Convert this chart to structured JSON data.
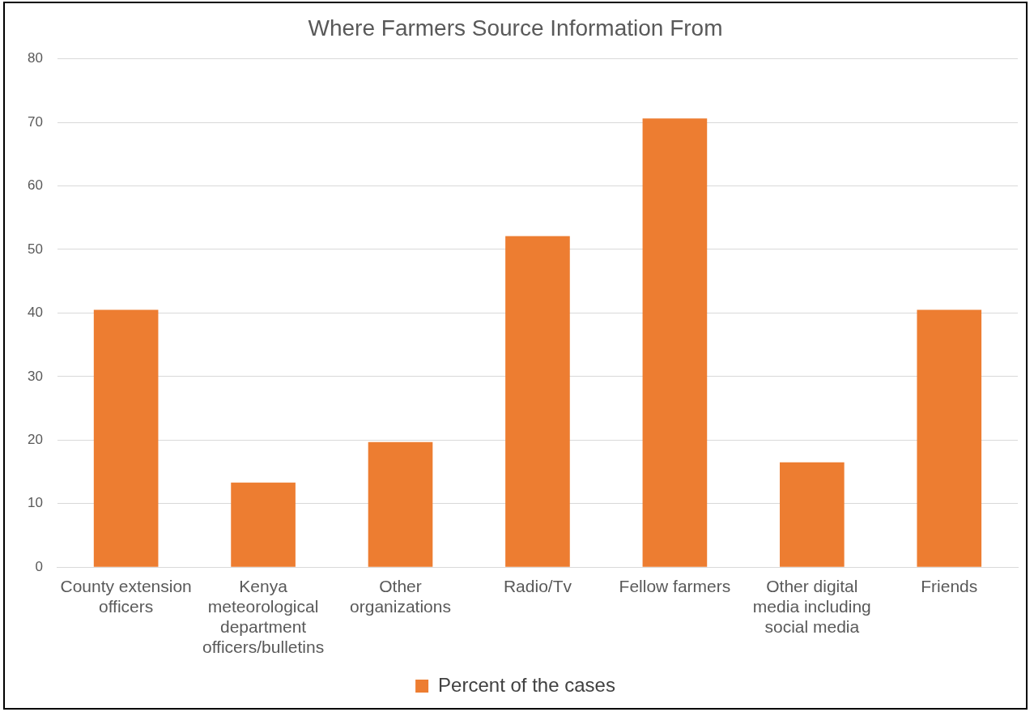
{
  "chart_data": {
    "type": "bar",
    "title": "Where Farmers Source Information From",
    "categories": [
      "County extension officers",
      "Kenya meteorological department officers/bulletins",
      "Other organizations",
      "Radio/Tv",
      "Fellow farmers",
      "Other digital media including social media",
      "Friends"
    ],
    "series": [
      {
        "name": "Percent of the cases",
        "color": "#ed7d31",
        "values": [
          40.5,
          13.3,
          19.7,
          52.1,
          70.6,
          16.5,
          40.5
        ]
      }
    ],
    "ylim": [
      0,
      80
    ],
    "yticks": [
      0,
      10,
      20,
      30,
      40,
      50,
      60,
      70,
      80
    ],
    "grid": "y",
    "legend": "bottom"
  }
}
